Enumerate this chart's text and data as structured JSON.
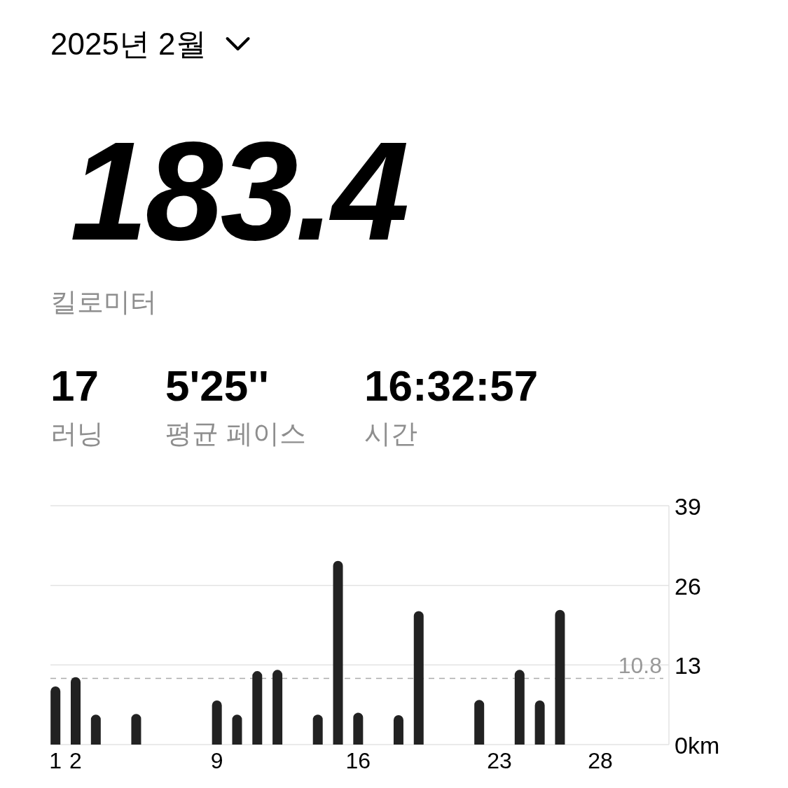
{
  "chart_data": {
    "type": "bar",
    "title": "2025년 2월",
    "annotations": [
      "183.4",
      "킬로미터",
      "17",
      "러닝",
      "5'25''",
      "평균 페이스",
      "16:32:57",
      "시간"
    ],
    "x": [
      1,
      2,
      3,
      5,
      9,
      10,
      11,
      12,
      14,
      15,
      16,
      18,
      19,
      22,
      24,
      25,
      26
    ],
    "values": [
      9.5,
      11.0,
      4.9,
      5.0,
      7.2,
      4.9,
      12.0,
      12.2,
      4.9,
      30.0,
      5.2,
      4.8,
      21.8,
      7.3,
      12.2,
      7.2,
      22.0
    ],
    "color": "#222222",
    "xlim": [
      0.75,
      31.4
    ],
    "xticks": [
      1,
      2,
      9,
      16,
      23,
      28
    ],
    "ylim": [
      0,
      39
    ],
    "yticks": [
      {
        "value": 0,
        "label": "0km"
      },
      13,
      26,
      39
    ],
    "grid": "y",
    "ref_lines": [
      {
        "axis": "y",
        "value": 10.8,
        "label": "10.8",
        "color": "#aaaaaa",
        "line_style": "dashed"
      }
    ]
  }
}
